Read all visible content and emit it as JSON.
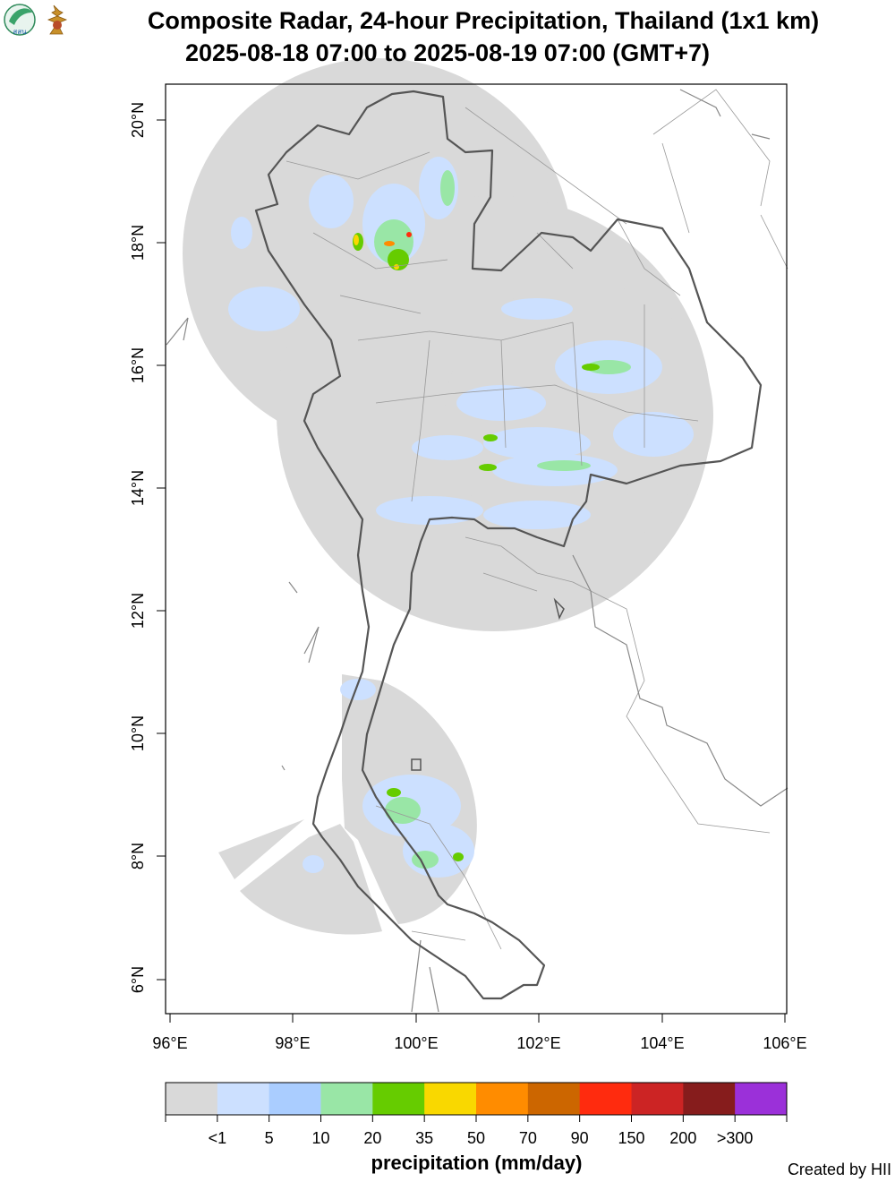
{
  "header": {
    "title_line1": "Composite Radar, 24-hour Precipitation, Thailand (1x1 km)",
    "title_line2": "2025-08-18 07:00 to 2025-08-19 07:00 (GMT+7)",
    "logo_text": "สสน"
  },
  "map": {
    "lon_ticks": [
      "96°E",
      "98°E",
      "100°E",
      "102°E",
      "104°E",
      "106°E"
    ],
    "lat_ticks": [
      "6°N",
      "8°N",
      "10°N",
      "12°N",
      "14°N",
      "16°N",
      "18°N",
      "20°N"
    ]
  },
  "legend": {
    "title": "precipitation (mm/day)",
    "labels": [
      "<1",
      "5",
      "10",
      "20",
      "35",
      "50",
      "70",
      "90",
      "150",
      "200",
      ">300"
    ],
    "colors": [
      "#d9d9d9",
      "#cce0ff",
      "#aacdff",
      "#99e6a6",
      "#66cc00",
      "#f9d800",
      "#ff8c00",
      "#cc6600",
      "#ff2b0e",
      "#cc2424",
      "#861c1c",
      "#9b30d9"
    ]
  },
  "footer": {
    "credit": "Created by HII"
  },
  "colors": {
    "radar_coverage": "#d9d9d9",
    "country_border": "#555555",
    "province_border": "#999999"
  }
}
